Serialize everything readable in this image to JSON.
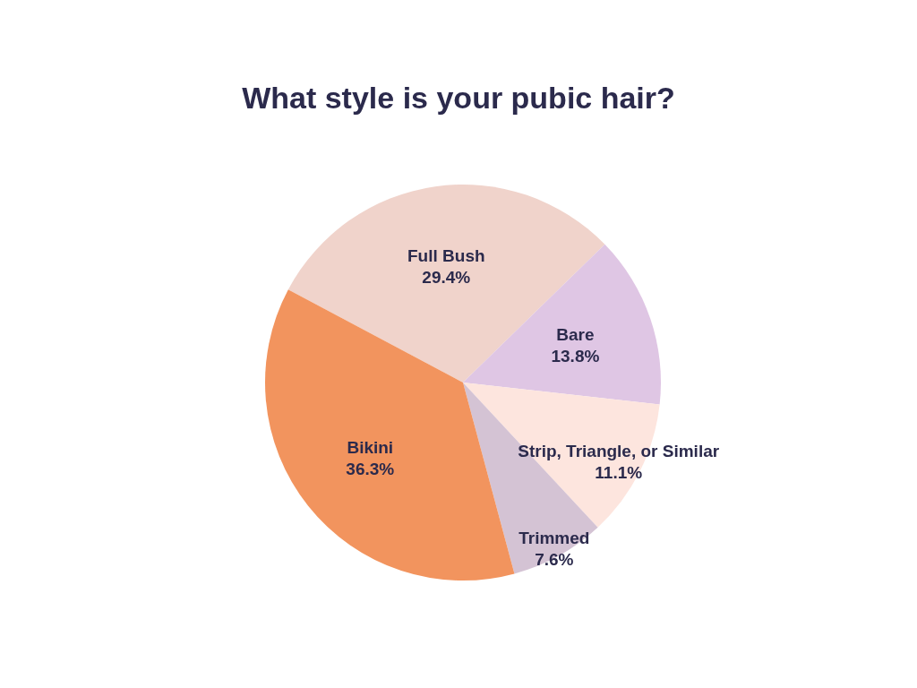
{
  "chart_data": {
    "type": "pie",
    "title": "What style is your pubic hair?",
    "categories": [
      "Full Bush",
      "Bare",
      "Strip, Triangle, or Similar",
      "Trimmed",
      "Bikini"
    ],
    "values": [
      29.4,
      13.8,
      11.1,
      7.6,
      36.3
    ],
    "value_labels": [
      "29.4%",
      "13.8%",
      "11.1%",
      "7.6%",
      "36.3%"
    ],
    "colors": [
      "#f0d3cb",
      "#dfc6e4",
      "#fde5de",
      "#d4c3d4",
      "#f2945e"
    ],
    "legend": false
  }
}
